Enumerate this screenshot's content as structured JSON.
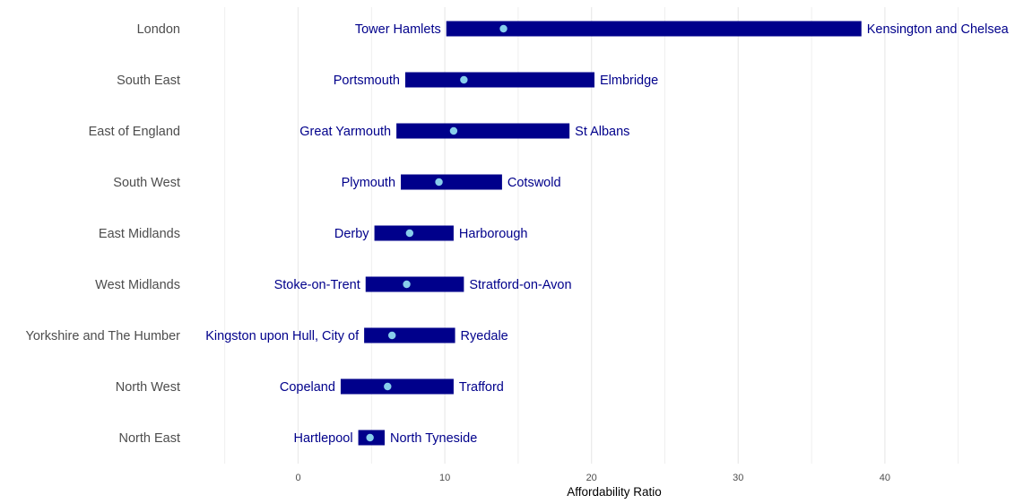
{
  "chart_data": {
    "type": "range-bar",
    "xlabel": "Affordability Ratio",
    "xlim": [
      -5,
      47
    ],
    "major_ticks": [
      0,
      10,
      20,
      30,
      40
    ],
    "minor_grid": [
      -5,
      5,
      15,
      25,
      35,
      45
    ],
    "grid": true,
    "colors": {
      "bar": "#00008b",
      "median_dot": "#87ceeb",
      "label": "#00008b",
      "grid": "#ebebeb"
    },
    "rows": [
      {
        "region": "London",
        "min": 10.1,
        "min_label": "Tower Hamlets",
        "max": 38.4,
        "max_label": "Kensington and Chelsea",
        "median": 14.0
      },
      {
        "region": "South East",
        "min": 7.3,
        "min_label": "Portsmouth",
        "max": 20.2,
        "max_label": "Elmbridge",
        "median": 11.3
      },
      {
        "region": "East of England",
        "min": 6.7,
        "min_label": "Great Yarmouth",
        "max": 18.5,
        "max_label": "St Albans",
        "median": 10.6
      },
      {
        "region": "South West",
        "min": 7.0,
        "min_label": "Plymouth",
        "max": 13.9,
        "max_label": "Cotswold",
        "median": 9.6
      },
      {
        "region": "East Midlands",
        "min": 5.2,
        "min_label": "Derby",
        "max": 10.6,
        "max_label": "Harborough",
        "median": 7.6
      },
      {
        "region": "West Midlands",
        "min": 4.6,
        "min_label": "Stoke-on-Trent",
        "max": 11.3,
        "max_label": "Stratford-on-Avon",
        "median": 7.4
      },
      {
        "region": "Yorkshire and The Humber",
        "min": 4.5,
        "min_label": "Kingston upon Hull, City of",
        "max": 10.7,
        "max_label": "Ryedale",
        "median": 6.4
      },
      {
        "region": "North West",
        "min": 2.9,
        "min_label": "Copeland",
        "max": 10.6,
        "max_label": "Trafford",
        "median": 6.1
      },
      {
        "region": "North East",
        "min": 4.1,
        "min_label": "Hartlepool",
        "max": 5.9,
        "max_label": "North Tyneside",
        "median": 4.9
      }
    ]
  }
}
